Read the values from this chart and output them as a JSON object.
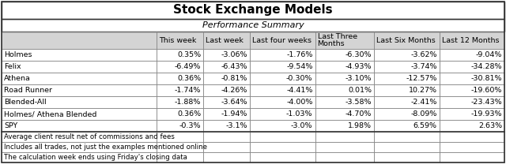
{
  "title": "Stock Exchange Models",
  "subtitle": "Performance Summary",
  "col_headers": [
    "",
    "This week",
    "Last week",
    "Last four weeks",
    "Last Three\nMonths",
    "Last Six Months",
    "Last 12 Months"
  ],
  "rows": [
    [
      "Holmes",
      "0.35%",
      "-3.06%",
      "-1.76%",
      "-6.30%",
      "-3.62%",
      "-9.04%"
    ],
    [
      "Felix",
      "-6.49%",
      "-6.43%",
      "-9.54%",
      "-4.93%",
      "-3.74%",
      "-34.28%"
    ],
    [
      "Athena",
      "0.36%",
      "-0.81%",
      "-0.30%",
      "-3.10%",
      "-12.57%",
      "-30.81%"
    ],
    [
      "Road Runner",
      "-1.74%",
      "-4.26%",
      "-4.41%",
      "0.01%",
      "10.27%",
      "-19.60%"
    ],
    [
      "Blended-All",
      "-1.88%",
      "-3.64%",
      "-4.00%",
      "-3.58%",
      "-2.41%",
      "-23.43%"
    ],
    [
      "Holmes/ Athena Blended",
      "0.36%",
      "-1.94%",
      "-1.03%",
      "-4.70%",
      "-8.09%",
      "-19.93%"
    ],
    [
      "SPY",
      "-0.3%",
      "-3.1%",
      "-3.0%",
      "1.98%",
      "6.59%",
      "2.63%"
    ]
  ],
  "footnotes": [
    "Average client result net of commissions and fees",
    "Includes all trades, not just the examples mentioned online",
    "The calculation week ends using Friday's closing data"
  ],
  "col_widths_raw": [
    2.5,
    0.75,
    0.75,
    1.05,
    0.95,
    1.05,
    1.05
  ],
  "bg_color": "#ffffff",
  "header_bg": "#d4d4d4",
  "row_bg_even": "#ffffff",
  "row_bg_odd": "#ffffff",
  "border_color": "#888888",
  "outer_border_color": "#333333",
  "title_fontsize": 11,
  "subtitle_fontsize": 8,
  "header_fontsize": 6.8,
  "cell_fontsize": 6.8,
  "footnote_fontsize": 6.2
}
